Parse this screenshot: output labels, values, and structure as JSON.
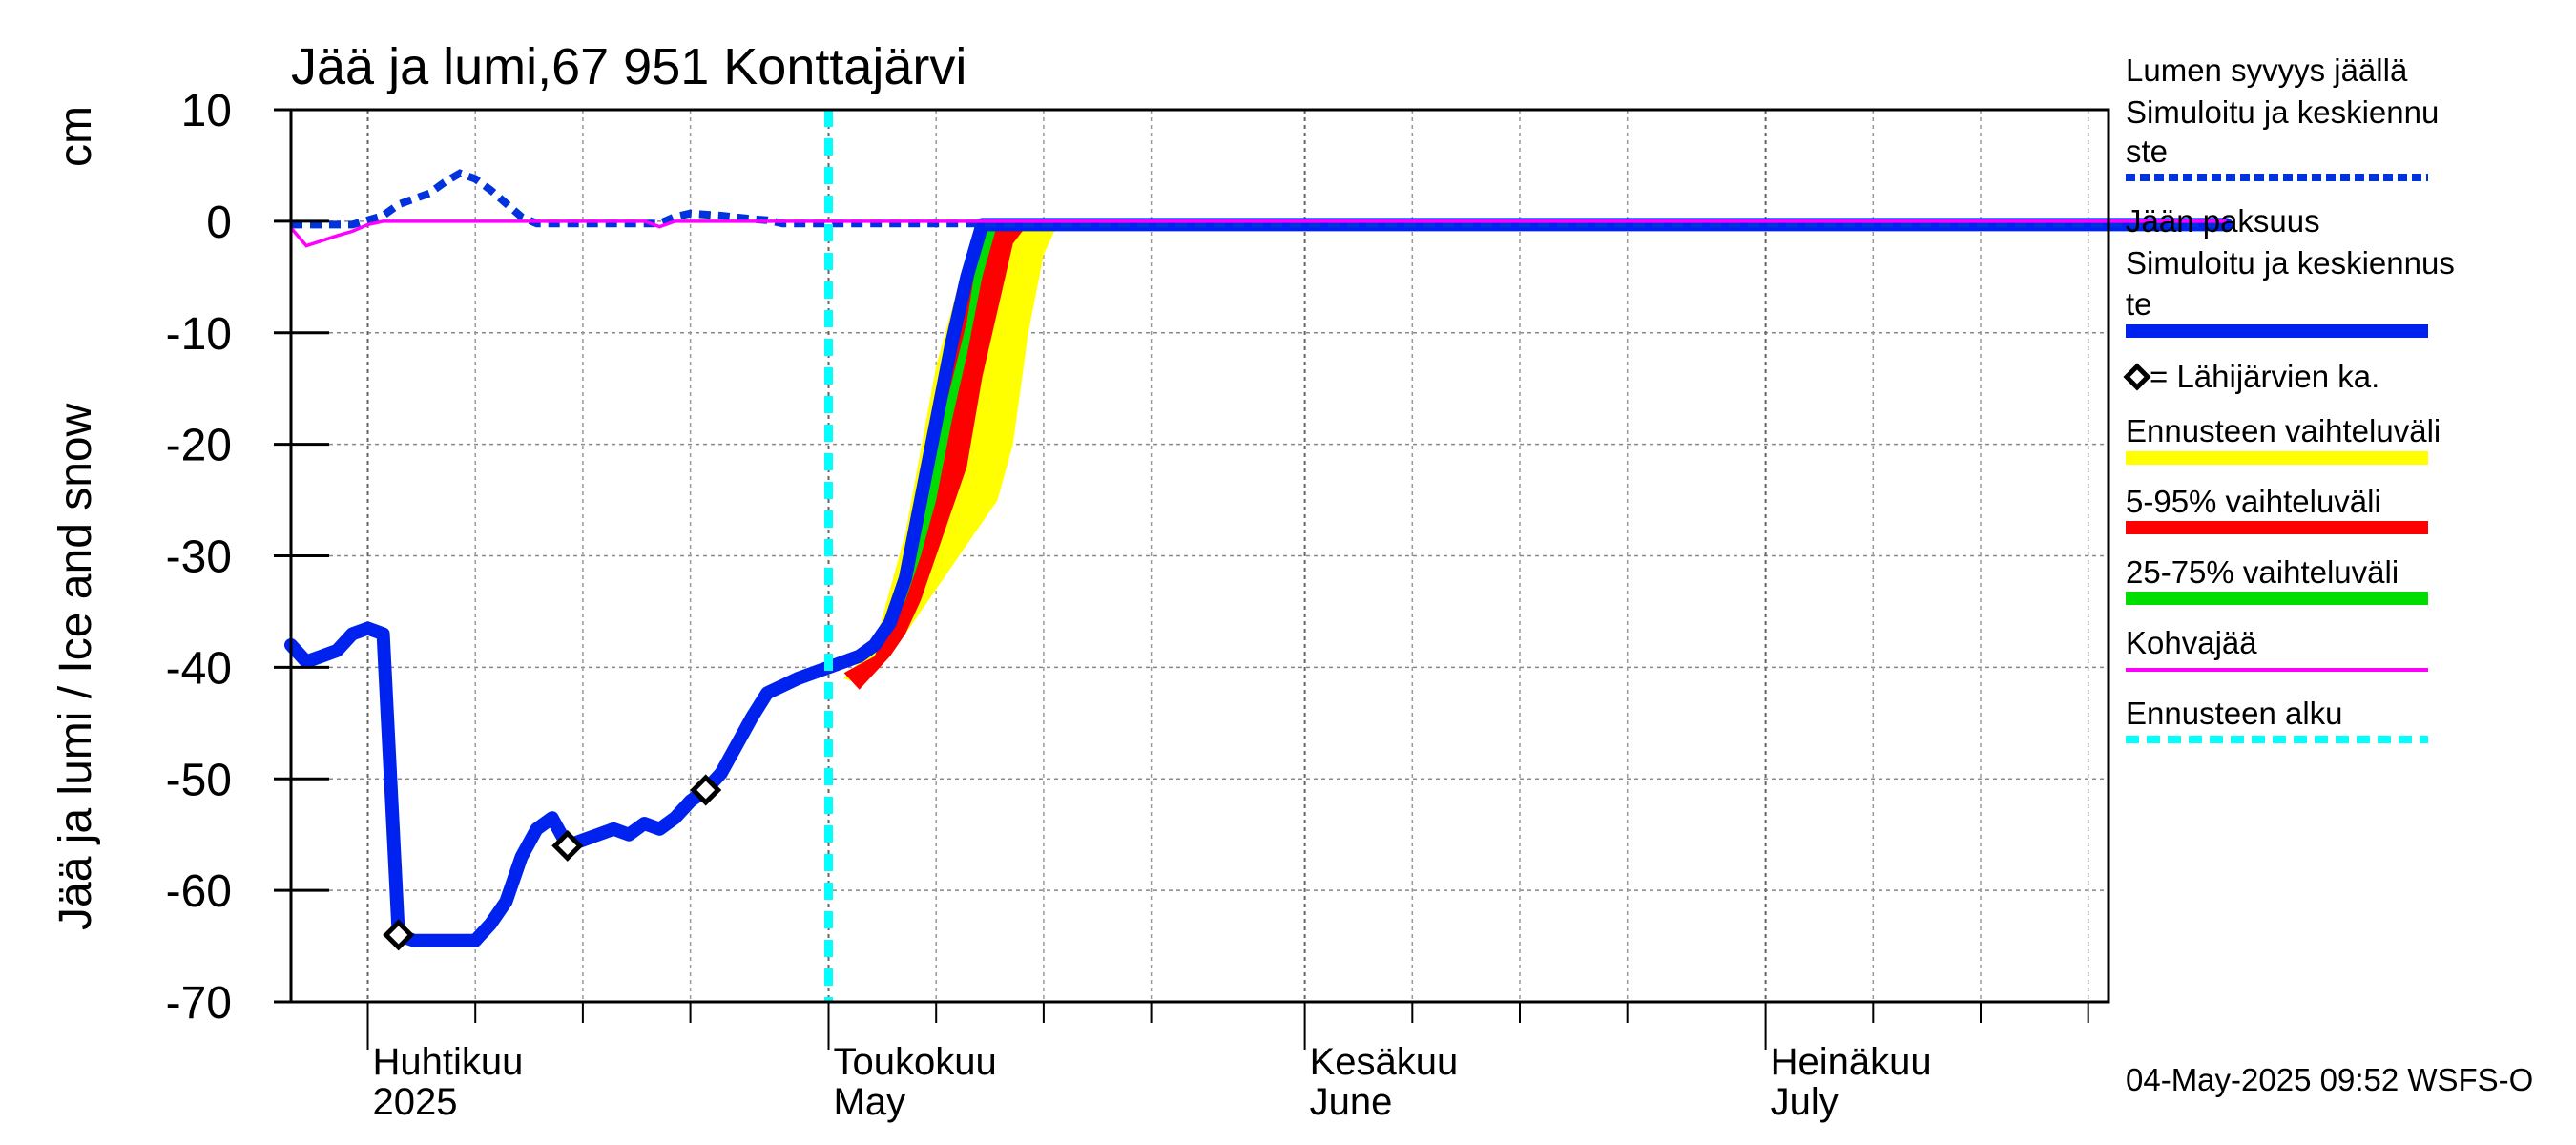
{
  "chart_data": {
    "type": "area",
    "title": "Jää ja lumi,67 951 Konttajärvi",
    "ylabel": "Jää ja lumi / Ice and snow",
    "yunit": "cm",
    "ylim": [
      -70,
      10
    ],
    "yticks": [
      10,
      0,
      -10,
      -20,
      -30,
      -40,
      -50,
      -60,
      -70
    ],
    "xlim": [
      "2025-03-27",
      "2025-07-31"
    ],
    "grid": true,
    "months": [
      {
        "fi": "Huhtikuu",
        "en": "2025",
        "date": "2025-04-01"
      },
      {
        "fi": "Toukokuu",
        "en": "May",
        "date": "2025-05-01"
      },
      {
        "fi": "Kesäkuu",
        "en": "June",
        "date": "2025-06-01"
      },
      {
        "fi": "Heinäkuu",
        "en": "July",
        "date": "2025-07-01"
      }
    ],
    "forecast_start": "2025-05-01",
    "series": [
      {
        "name": "Lumen syvyys jäällä Simuloitu ja keskiennuste",
        "color": "#0033dd",
        "style": "dashed",
        "points": [
          [
            "2025-03-27",
            -0.3
          ],
          [
            "2025-03-31",
            -0.3
          ],
          [
            "2025-04-02",
            0.5
          ],
          [
            "2025-04-03",
            1.5
          ],
          [
            "2025-04-05",
            2.5
          ],
          [
            "2025-04-06",
            3.5
          ],
          [
            "2025-04-07",
            4.3
          ],
          [
            "2025-04-08",
            3.8
          ],
          [
            "2025-04-09",
            2.8
          ],
          [
            "2025-04-10",
            1.6
          ],
          [
            "2025-04-11",
            0.4
          ],
          [
            "2025-04-12",
            -0.2
          ],
          [
            "2025-04-20",
            -0.2
          ],
          [
            "2025-04-21",
            0.4
          ],
          [
            "2025-04-22",
            0.7
          ],
          [
            "2025-04-24",
            0.5
          ],
          [
            "2025-04-26",
            0.2
          ],
          [
            "2025-04-27",
            0.1
          ],
          [
            "2025-04-28",
            -0.2
          ],
          [
            "2025-04-30",
            -0.2
          ],
          [
            "2025-05-20",
            -0.2
          ],
          [
            "2025-07-31",
            -0.2
          ]
        ]
      },
      {
        "name": "Jään paksuus Simuloitu ja keskiennuste",
        "color": "#0022ee",
        "style": "solid",
        "points": [
          [
            "2025-03-27",
            -38
          ],
          [
            "2025-03-28",
            -39.5
          ],
          [
            "2025-03-29",
            -39
          ],
          [
            "2025-03-30",
            -38.5
          ],
          [
            "2025-03-31",
            -37
          ],
          [
            "2025-04-01",
            -36.5
          ],
          [
            "2025-04-02",
            -37
          ],
          [
            "2025-04-03",
            -64
          ],
          [
            "2025-04-04",
            -64.5
          ],
          [
            "2025-04-08",
            -64.5
          ],
          [
            "2025-04-09",
            -63
          ],
          [
            "2025-04-10",
            -61
          ],
          [
            "2025-04-11",
            -57
          ],
          [
            "2025-04-12",
            -54.5
          ],
          [
            "2025-04-13",
            -53.5
          ],
          [
            "2025-04-14",
            -56
          ],
          [
            "2025-04-15",
            -55.5
          ],
          [
            "2025-04-16",
            -55
          ],
          [
            "2025-04-17",
            -54.5
          ],
          [
            "2025-04-18",
            -55
          ],
          [
            "2025-04-19",
            -54
          ],
          [
            "2025-04-20",
            -54.5
          ],
          [
            "2025-04-21",
            -53.5
          ],
          [
            "2025-04-22",
            -52
          ],
          [
            "2025-04-23",
            -51
          ],
          [
            "2025-04-24",
            -49.5
          ],
          [
            "2025-04-25",
            -47
          ],
          [
            "2025-04-26",
            -44.5
          ],
          [
            "2025-04-27",
            -42.3
          ],
          [
            "2025-04-29",
            -41
          ],
          [
            "2025-05-01",
            -40
          ],
          [
            "2025-05-03",
            -39
          ],
          [
            "2025-05-04",
            -38
          ],
          [
            "2025-05-05",
            -36
          ],
          [
            "2025-05-06",
            -32
          ],
          [
            "2025-05-07",
            -25
          ],
          [
            "2025-05-08",
            -18
          ],
          [
            "2025-05-09",
            -11
          ],
          [
            "2025-05-10",
            -5
          ],
          [
            "2025-05-11",
            -0.3
          ],
          [
            "2025-07-31",
            -0.3
          ]
        ]
      },
      {
        "name": "Kohvajää",
        "color": "#ff00ff",
        "style": "solid",
        "points": [
          [
            "2025-03-27",
            -0.6
          ],
          [
            "2025-03-28",
            -2.2
          ],
          [
            "2025-03-30",
            -1.3
          ],
          [
            "2025-03-31",
            -0.9
          ],
          [
            "2025-04-01",
            -0.3
          ],
          [
            "2025-04-02",
            0
          ],
          [
            "2025-04-19",
            0
          ],
          [
            "2025-04-20",
            -0.5
          ],
          [
            "2025-04-21",
            0
          ],
          [
            "2025-07-31",
            0
          ]
        ]
      }
    ],
    "bands": [
      {
        "name": "Ennusteen vaihteluväli",
        "color": "#ffff00",
        "upper": [
          [
            "2025-05-02",
            -41
          ],
          [
            "2025-05-04",
            -38
          ],
          [
            "2025-05-06",
            -28
          ],
          [
            "2025-05-08",
            -13
          ],
          [
            "2025-05-10",
            -3
          ],
          [
            "2025-05-11",
            0
          ],
          [
            "2025-05-16",
            0
          ],
          [
            "2025-05-15",
            -3
          ],
          [
            "2025-05-14",
            -10
          ],
          [
            "2025-05-13",
            -20
          ],
          [
            "2025-05-12",
            -25
          ],
          [
            "2025-05-10",
            -29
          ],
          [
            "2025-05-08",
            -33
          ],
          [
            "2025-05-06",
            -37
          ],
          [
            "2025-05-05",
            -39
          ],
          [
            "2025-05-04",
            -40.5
          ],
          [
            "2025-05-03",
            -41.5
          ]
        ]
      },
      {
        "name": "5-95% vaihteluväli",
        "color": "#ff0000",
        "upper": [
          [
            "2025-05-02",
            -40.5
          ],
          [
            "2025-05-04",
            -39
          ],
          [
            "2025-05-06",
            -32
          ],
          [
            "2025-05-08",
            -15
          ],
          [
            "2025-05-10",
            -5
          ],
          [
            "2025-05-11",
            -0.2
          ],
          [
            "2025-05-14",
            -0.2
          ],
          [
            "2025-05-13",
            -2
          ],
          [
            "2025-05-12",
            -8
          ],
          [
            "2025-05-11",
            -14
          ],
          [
            "2025-05-10",
            -22
          ],
          [
            "2025-05-08",
            -30
          ],
          [
            "2025-05-07",
            -34
          ],
          [
            "2025-05-06",
            -37
          ],
          [
            "2025-05-05",
            -39
          ],
          [
            "2025-05-04",
            -40.5
          ],
          [
            "2025-05-03",
            -42
          ]
        ]
      },
      {
        "name": "25-75% vaihteluväli",
        "color": "#00dd00",
        "upper": [
          [
            "2025-05-05",
            -37
          ],
          [
            "2025-05-07",
            -28
          ],
          [
            "2025-05-08",
            -20
          ],
          [
            "2025-05-10",
            -9
          ],
          [
            "2025-05-11",
            -0.2
          ],
          [
            "2025-05-12",
            -0.2
          ],
          [
            "2025-05-11",
            -5
          ],
          [
            "2025-05-10",
            -12
          ],
          [
            "2025-05-09",
            -18
          ],
          [
            "2025-05-08",
            -25
          ],
          [
            "2025-05-07",
            -30
          ],
          [
            "2025-05-06",
            -34
          ]
        ]
      }
    ],
    "markers": {
      "name": "= Lähijärvien ka.",
      "points": [
        [
          "2025-04-03",
          -64
        ],
        [
          "2025-04-14",
          -56
        ],
        [
          "2025-04-23",
          -51
        ]
      ]
    },
    "legend": [
      {
        "label": "Lumen syvyys jäällä",
        "label2": "  Simuloitu ja keskiennu",
        "label3": "ste",
        "color": "#0033dd",
        "style": "dashed"
      },
      {
        "label": "Jään paksuus",
        "label2": "  Simuloitu ja keskiennus",
        "label3": "te",
        "color": "#0022ee",
        "style": "thick"
      },
      {
        "label": "= Lähijärvien ka.",
        "style": "marker"
      },
      {
        "label": "Ennusteen vaihteluväli",
        "color": "#ffff00",
        "style": "band"
      },
      {
        "label": "5-95% vaihteluväli",
        "color": "#ff0000",
        "style": "band"
      },
      {
        "label": "25-75% vaihteluväli",
        "color": "#00dd00",
        "style": "band"
      },
      {
        "label": "Kohvajää",
        "color": "#ff00ff",
        "style": "thin"
      },
      {
        "label": "Ennusteen alku",
        "color": "#00ffff",
        "style": "cyan-dashed"
      }
    ]
  },
  "footer": "04-May-2025 09:52 WSFS-O"
}
